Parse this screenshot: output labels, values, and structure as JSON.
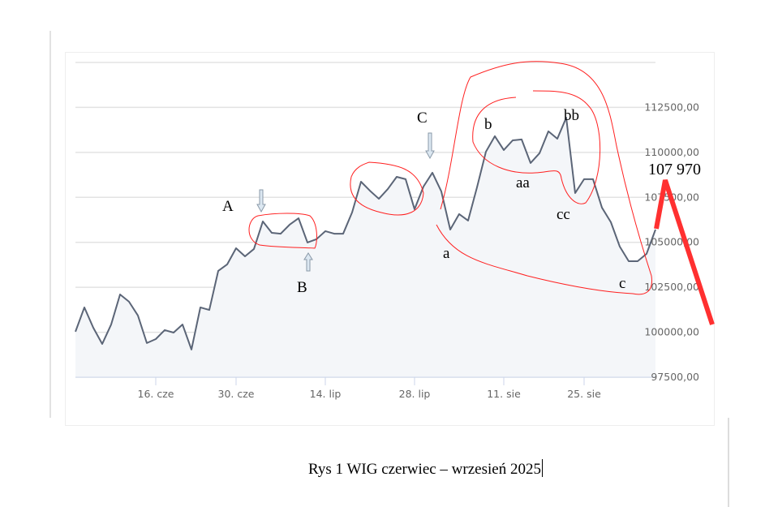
{
  "chart_data": {
    "type": "area",
    "title": "",
    "xlabel": "",
    "ylabel": "",
    "ylim": [
      97500,
      115000
    ],
    "grid": true,
    "y_ticks": [
      "97500,00",
      "100000,00",
      "102500,00",
      "105000,00",
      "107500,00",
      "110000,00",
      "112500,00"
    ],
    "y_tick_values": [
      97500,
      100000,
      102500,
      105000,
      107500,
      110000,
      112500
    ],
    "x_ticks": [
      {
        "label": "16. cze",
        "index": 9
      },
      {
        "label": "30. cze",
        "index": 18
      },
      {
        "label": "14. lip",
        "index": 28
      },
      {
        "label": "28. lip",
        "index": 38
      },
      {
        "label": "11. sie",
        "index": 48
      },
      {
        "label": "25. sie",
        "index": 57
      }
    ],
    "series": [
      {
        "name": "WIG",
        "values": [
          100030,
          101380,
          100250,
          99350,
          100430,
          102100,
          101700,
          100930,
          99400,
          99620,
          100120,
          99980,
          100430,
          99040,
          101380,
          101240,
          103410,
          103770,
          104670,
          104220,
          104630,
          106160,
          105530,
          105480,
          105980,
          106340,
          104990,
          105170,
          105620,
          105480,
          105480,
          106660,
          108370,
          107870,
          107420,
          107960,
          108640,
          108510,
          106840,
          108100,
          108870,
          107830,
          105710,
          106570,
          106210,
          108060,
          110040,
          110900,
          110130,
          110670,
          110720,
          109410,
          109950,
          111170,
          110760,
          111930,
          107740,
          108510,
          108510,
          106930,
          106120,
          104760,
          103950,
          103950,
          104360,
          105710
        ]
      }
    ],
    "colors": {
      "line": "#5b6577",
      "fill": "#f4f6f9",
      "grid": "#e3e3e3",
      "annotation": "#ff0000",
      "arrow": "#dce8f2"
    },
    "annotations": {
      "A": "A",
      "B": "B",
      "C": "C",
      "a": "a",
      "b": "b",
      "aa": "aa",
      "bb": "bb",
      "cc": "cc",
      "c": "c",
      "target": "107 970"
    }
  },
  "caption": "Rys 1 WIG czerwiec – wrzesień 2025"
}
